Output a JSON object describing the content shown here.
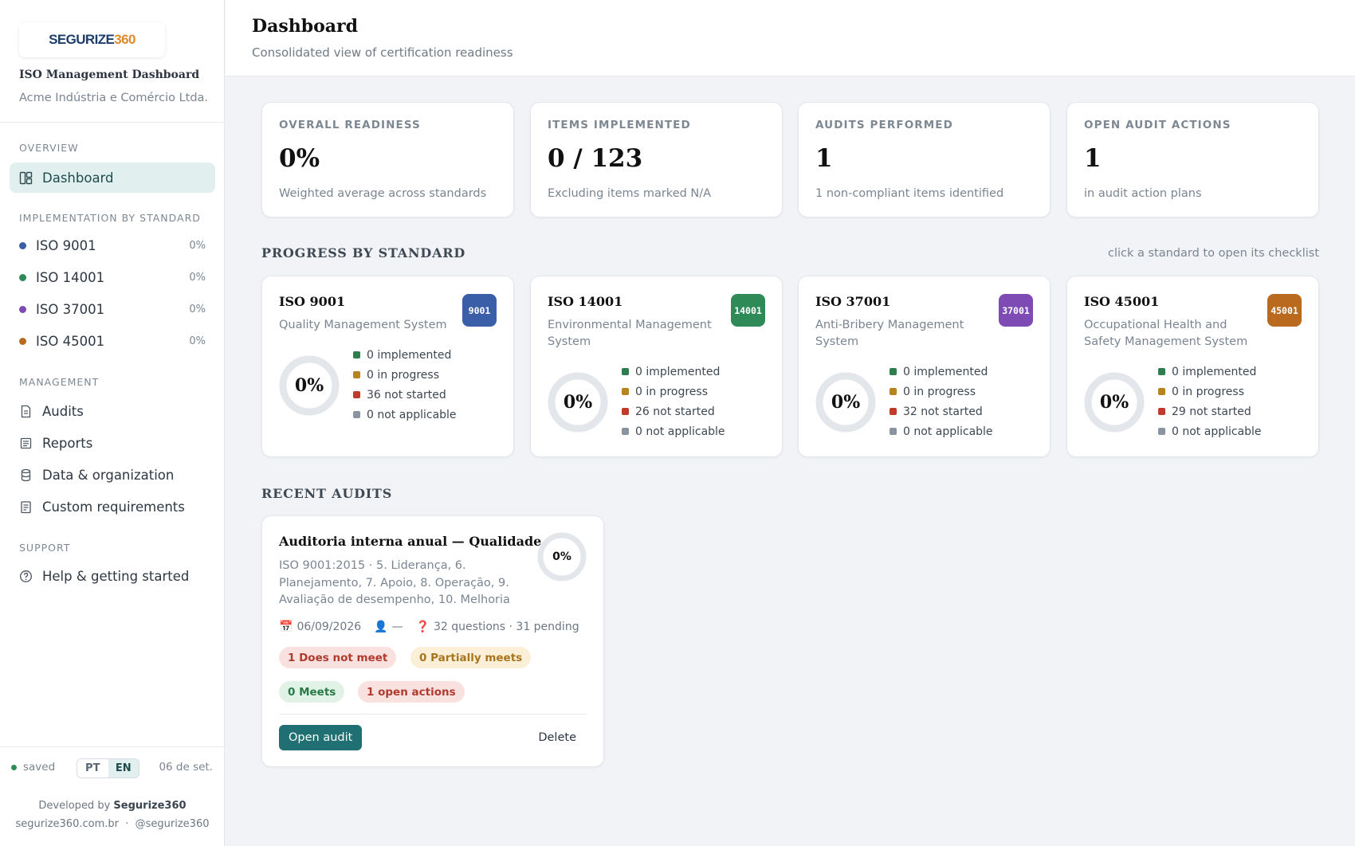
{
  "brand": {
    "logo_main": "SEGURIZE",
    "logo_accent": "360"
  },
  "sidebar": {
    "app_title": "ISO Management Dashboard",
    "org_name": "Acme Indústria e Comércio Ltda.",
    "overview_label": "OVERVIEW",
    "dashboard_label": "Dashboard",
    "impl_label": "IMPLEMENTATION BY STANDARD",
    "standards": [
      {
        "label": "ISO 9001",
        "pct": "0%",
        "color": "#3b5ea8"
      },
      {
        "label": "ISO 14001",
        "pct": "0%",
        "color": "#2e8b57"
      },
      {
        "label": "ISO 37001",
        "pct": "0%",
        "color": "#7e4bb5"
      },
      {
        "label": "ISO 45001",
        "pct": "0%",
        "color": "#b96a1f"
      }
    ],
    "management_label": "MANAGEMENT",
    "management_items": [
      "Audits",
      "Reports",
      "Data & organization",
      "Custom requirements"
    ],
    "support_label": "SUPPORT",
    "help_label": "Help & getting started",
    "saved_label": "saved",
    "lang_pt": "PT",
    "lang_en": "EN",
    "date_short": "06 de set.",
    "developed_prefix": "Developed by",
    "developed_name": "Segurize360",
    "site": "segurize360.com.br",
    "links_sep": "·",
    "handle": "@segurize360"
  },
  "header": {
    "title": "Dashboard",
    "subtitle": "Consolidated view of certification readiness"
  },
  "kpis": [
    {
      "label": "OVERALL READINESS",
      "value": "0%",
      "note": "Weighted average across standards"
    },
    {
      "label": "ITEMS IMPLEMENTED",
      "value": "0 / 123",
      "note": "Excluding items marked N/A"
    },
    {
      "label": "AUDITS PERFORMED",
      "value": "1",
      "note": "1 non-compliant items identified"
    },
    {
      "label": "OPEN AUDIT ACTIONS",
      "value": "1",
      "note": "in audit action plans"
    }
  ],
  "progress": {
    "title": "PROGRESS BY STANDARD",
    "hint": "click a standard to open its checklist",
    "legend_colors": {
      "implemented": "#2e7d4f",
      "in_progress": "#b5841f",
      "not_started": "#c0392b",
      "not_applicable": "#8a94a0"
    },
    "standards": [
      {
        "name": "ISO 9001",
        "desc": "Quality Management System",
        "badge": "9001",
        "badge_color": "#3b5ea8",
        "pct": "0%",
        "readiness": 0,
        "legend": [
          "0 implemented",
          "0 in progress",
          "36 not started",
          "0 not applicable"
        ]
      },
      {
        "name": "ISO 14001",
        "desc": "Environmental Management System",
        "badge": "14001",
        "badge_color": "#2e8b57",
        "pct": "0%",
        "readiness": 0,
        "legend": [
          "0 implemented",
          "0 in progress",
          "26 not started",
          "0 not applicable"
        ]
      },
      {
        "name": "ISO 37001",
        "desc": "Anti-Bribery Management System",
        "badge": "37001",
        "badge_color": "#7e4bb5",
        "pct": "0%",
        "readiness": 0,
        "legend": [
          "0 implemented",
          "0 in progress",
          "32 not started",
          "0 not applicable"
        ]
      },
      {
        "name": "ISO 45001",
        "desc": "Occupational Health and Safety Management System",
        "badge": "45001",
        "badge_color": "#b96a1f",
        "pct": "0%",
        "readiness": 0,
        "legend": [
          "0 implemented",
          "0 in progress",
          "29 not started",
          "0 not applicable"
        ]
      }
    ]
  },
  "recent": {
    "title": "RECENT AUDITS",
    "audit": {
      "title": "Auditoria interna anual — Qualidade",
      "desc": "ISO 9001:2015 · 5. Liderança, 6. Planejamento, 7. Apoio, 8. Operação, 9. Avaliação de desempenho, 10. Melhoria",
      "pct": "0%",
      "date": "06/09/2026",
      "auditor": "—",
      "questions": "32 questions · 31 pending",
      "pill_not_meet": "1 Does not meet",
      "pill_partial": "0 Partially meets",
      "pill_meets": "0 Meets",
      "pill_open": "1 open actions",
      "open_label": "Open audit",
      "delete_label": "Delete"
    }
  }
}
